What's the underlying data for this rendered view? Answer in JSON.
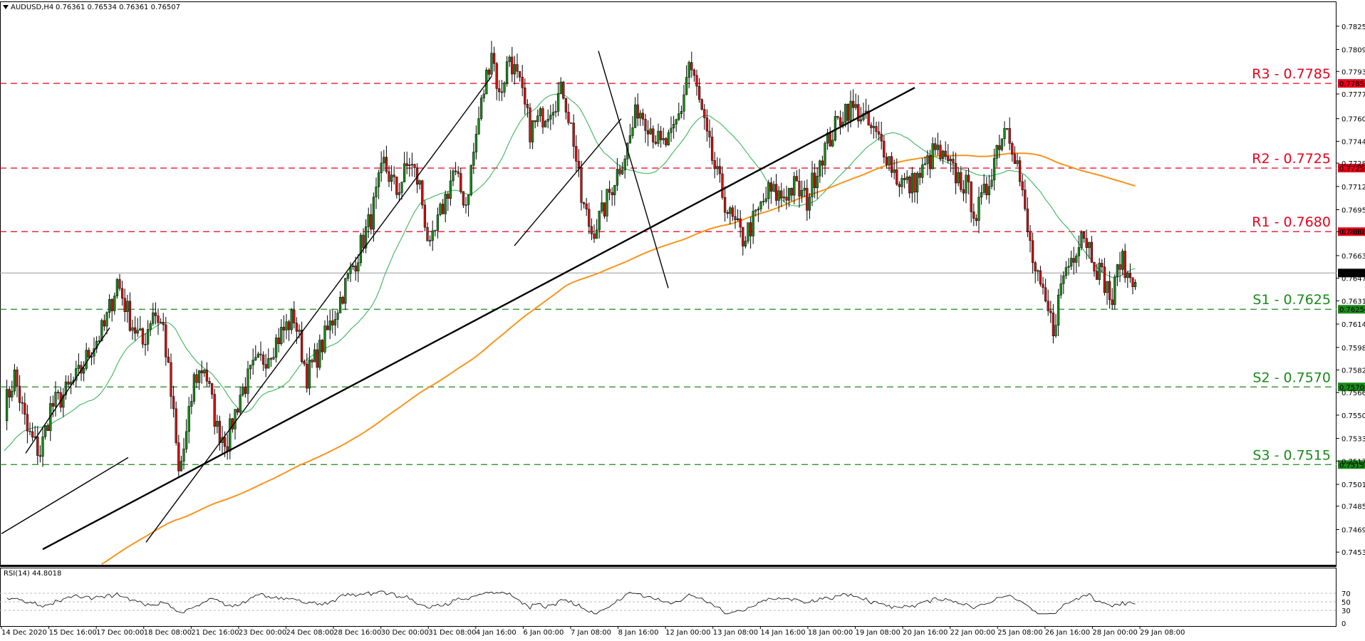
{
  "header": {
    "symbol": "AUDUSD,H4",
    "ohlc": "0.76361 0.76534 0.76361 0.76507"
  },
  "rsi_header": "RSI(14) 44.8018",
  "chart_data": {
    "type": "candlestick",
    "symbol": "AUDUSD",
    "timeframe": "H4",
    "current_price": "0.76507",
    "ylim": [
      0.7444,
      0.7835
    ],
    "y_ticks": [
      "0.78255",
      "0.78090",
      "0.77935",
      "0.77775",
      "0.77600",
      "0.77440",
      "0.77285",
      "0.77120",
      "0.76955",
      "0.76800",
      "0.76630",
      "0.76470",
      "0.76310",
      "0.76145",
      "0.75980",
      "0.75820",
      "0.75660",
      "0.75500",
      "0.75335",
      "0.75175",
      "0.75010",
      "0.74855",
      "0.74690",
      "0.74530"
    ],
    "x_ticks": [
      "14 Dec 2020",
      "15 Dec 16:00",
      "17 Dec 00:00",
      "18 Dec 08:00",
      "21 Dec 16:00",
      "23 Dec 00:00",
      "24 Dec 08:00",
      "28 Dec 16:00",
      "30 Dec 00:00",
      "31 Dec 08:00",
      "4 Jan 16:00",
      "6 Jan 00:00",
      "7 Jan 08:00",
      "8 Jan 16:00",
      "12 Jan 00:00",
      "13 Jan 08:00",
      "14 Jan 16:00",
      "18 Jan 00:00",
      "19 Jan 08:00",
      "20 Jan 16:00",
      "22 Jan 00:00",
      "25 Jan 08:00",
      "26 Jan 16:00",
      "28 Jan 00:00",
      "29 Jan 08:00"
    ],
    "levels": [
      {
        "label": "R3 - 0.7785",
        "value": 0.7785,
        "tag": "0.77850",
        "color": "#e8001c"
      },
      {
        "label": "R2 - 0.7725",
        "value": 0.7725,
        "tag": "0.77250",
        "color": "#e8001c"
      },
      {
        "label": "R1 - 0.7680",
        "value": 0.768,
        "tag": "0.76800",
        "color": "#e8001c"
      },
      {
        "label": "S1 - 0.7625",
        "value": 0.7625,
        "tag": "0.76250",
        "color": "#1a8a1a"
      },
      {
        "label": "S2 - 0.7570",
        "value": 0.757,
        "tag": "0.75700",
        "color": "#1a8a1a"
      },
      {
        "label": "S3 - 0.7515",
        "value": 0.7515,
        "tag": "0.75150",
        "color": "#1a8a1a"
      }
    ],
    "candle_colors": {
      "bull": "#1a8a1a",
      "bear": "#d01010"
    },
    "close_path": [
      [
        0,
        0.7555
      ],
      [
        4,
        0.7578
      ],
      [
        9,
        0.7538
      ],
      [
        14,
        0.7523
      ],
      [
        18,
        0.7555
      ],
      [
        24,
        0.7566
      ],
      [
        29,
        0.7578
      ],
      [
        34,
        0.7598
      ],
      [
        39,
        0.7612
      ],
      [
        44,
        0.7645
      ],
      [
        49,
        0.7618
      ],
      [
        54,
        0.76
      ],
      [
        58,
        0.7625
      ],
      [
        62,
        0.7612
      ],
      [
        66,
        0.7548
      ],
      [
        68,
        0.7508
      ],
      [
        71,
        0.7535
      ],
      [
        74,
        0.7575
      ],
      [
        78,
        0.7585
      ],
      [
        83,
        0.754
      ],
      [
        87,
        0.7532
      ],
      [
        92,
        0.7565
      ],
      [
        97,
        0.7582
      ],
      [
        102,
        0.7592
      ],
      [
        108,
        0.7608
      ],
      [
        113,
        0.762
      ],
      [
        118,
        0.7578
      ],
      [
        123,
        0.7596
      ],
      [
        128,
        0.7618
      ],
      [
        133,
        0.7642
      ],
      [
        138,
        0.7665
      ],
      [
        143,
        0.769
      ],
      [
        148,
        0.7728
      ],
      [
        153,
        0.7708
      ],
      [
        158,
        0.773
      ],
      [
        162,
        0.7712
      ],
      [
        166,
        0.7665
      ],
      [
        170,
        0.7692
      ],
      [
        175,
        0.7722
      ],
      [
        180,
        0.77
      ],
      [
        185,
        0.776
      ],
      [
        190,
        0.781
      ],
      [
        193,
        0.7775
      ],
      [
        197,
        0.7805
      ],
      [
        201,
        0.7782
      ],
      [
        205,
        0.7752
      ],
      [
        209,
        0.776
      ],
      [
        214,
        0.7772
      ],
      [
        218,
        0.778
      ],
      [
        222,
        0.7745
      ],
      [
        225,
        0.7702
      ],
      [
        229,
        0.768
      ],
      [
        233,
        0.7692
      ],
      [
        238,
        0.7718
      ],
      [
        243,
        0.774
      ],
      [
        247,
        0.7768
      ],
      [
        251,
        0.7758
      ],
      [
        256,
        0.774
      ],
      [
        260,
        0.7745
      ],
      [
        264,
        0.7768
      ],
      [
        267,
        0.78
      ],
      [
        270,
        0.778
      ],
      [
        274,
        0.7745
      ],
      [
        278,
        0.7718
      ],
      [
        283,
        0.769
      ],
      [
        288,
        0.7675
      ],
      [
        293,
        0.769
      ],
      [
        298,
        0.7708
      ],
      [
        303,
        0.7705
      ],
      [
        308,
        0.7712
      ],
      [
        313,
        0.7702
      ],
      [
        318,
        0.7732
      ],
      [
        323,
        0.775
      ],
      [
        328,
        0.7768
      ],
      [
        333,
        0.7765
      ],
      [
        338,
        0.7752
      ],
      [
        343,
        0.774
      ],
      [
        348,
        0.7718
      ],
      [
        353,
        0.7712
      ],
      [
        358,
        0.7722
      ],
      [
        363,
        0.7738
      ],
      [
        367,
        0.7728
      ],
      [
        371,
        0.772
      ],
      [
        375,
        0.7712
      ],
      [
        379,
        0.7692
      ],
      [
        383,
        0.771
      ],
      [
        387,
        0.774
      ],
      [
        391,
        0.7758
      ],
      [
        395,
        0.7728
      ],
      [
        399,
        0.768
      ],
      [
        402,
        0.765
      ],
      [
        405,
        0.7632
      ],
      [
        409,
        0.7612
      ],
      [
        413,
        0.765
      ],
      [
        417,
        0.7665
      ],
      [
        420,
        0.7682
      ],
      [
        423,
        0.767
      ],
      [
        426,
        0.7655
      ],
      [
        429,
        0.7645
      ],
      [
        432,
        0.763
      ],
      [
        435,
        0.7662
      ],
      [
        438,
        0.7648
      ],
      [
        441,
        0.765
      ]
    ]
  },
  "rsi_data": {
    "period": 14,
    "value": 44.8018,
    "levels": [
      "70",
      "50",
      "30",
      "0"
    ],
    "ylim": [
      0,
      100
    ],
    "color": "#000000"
  }
}
